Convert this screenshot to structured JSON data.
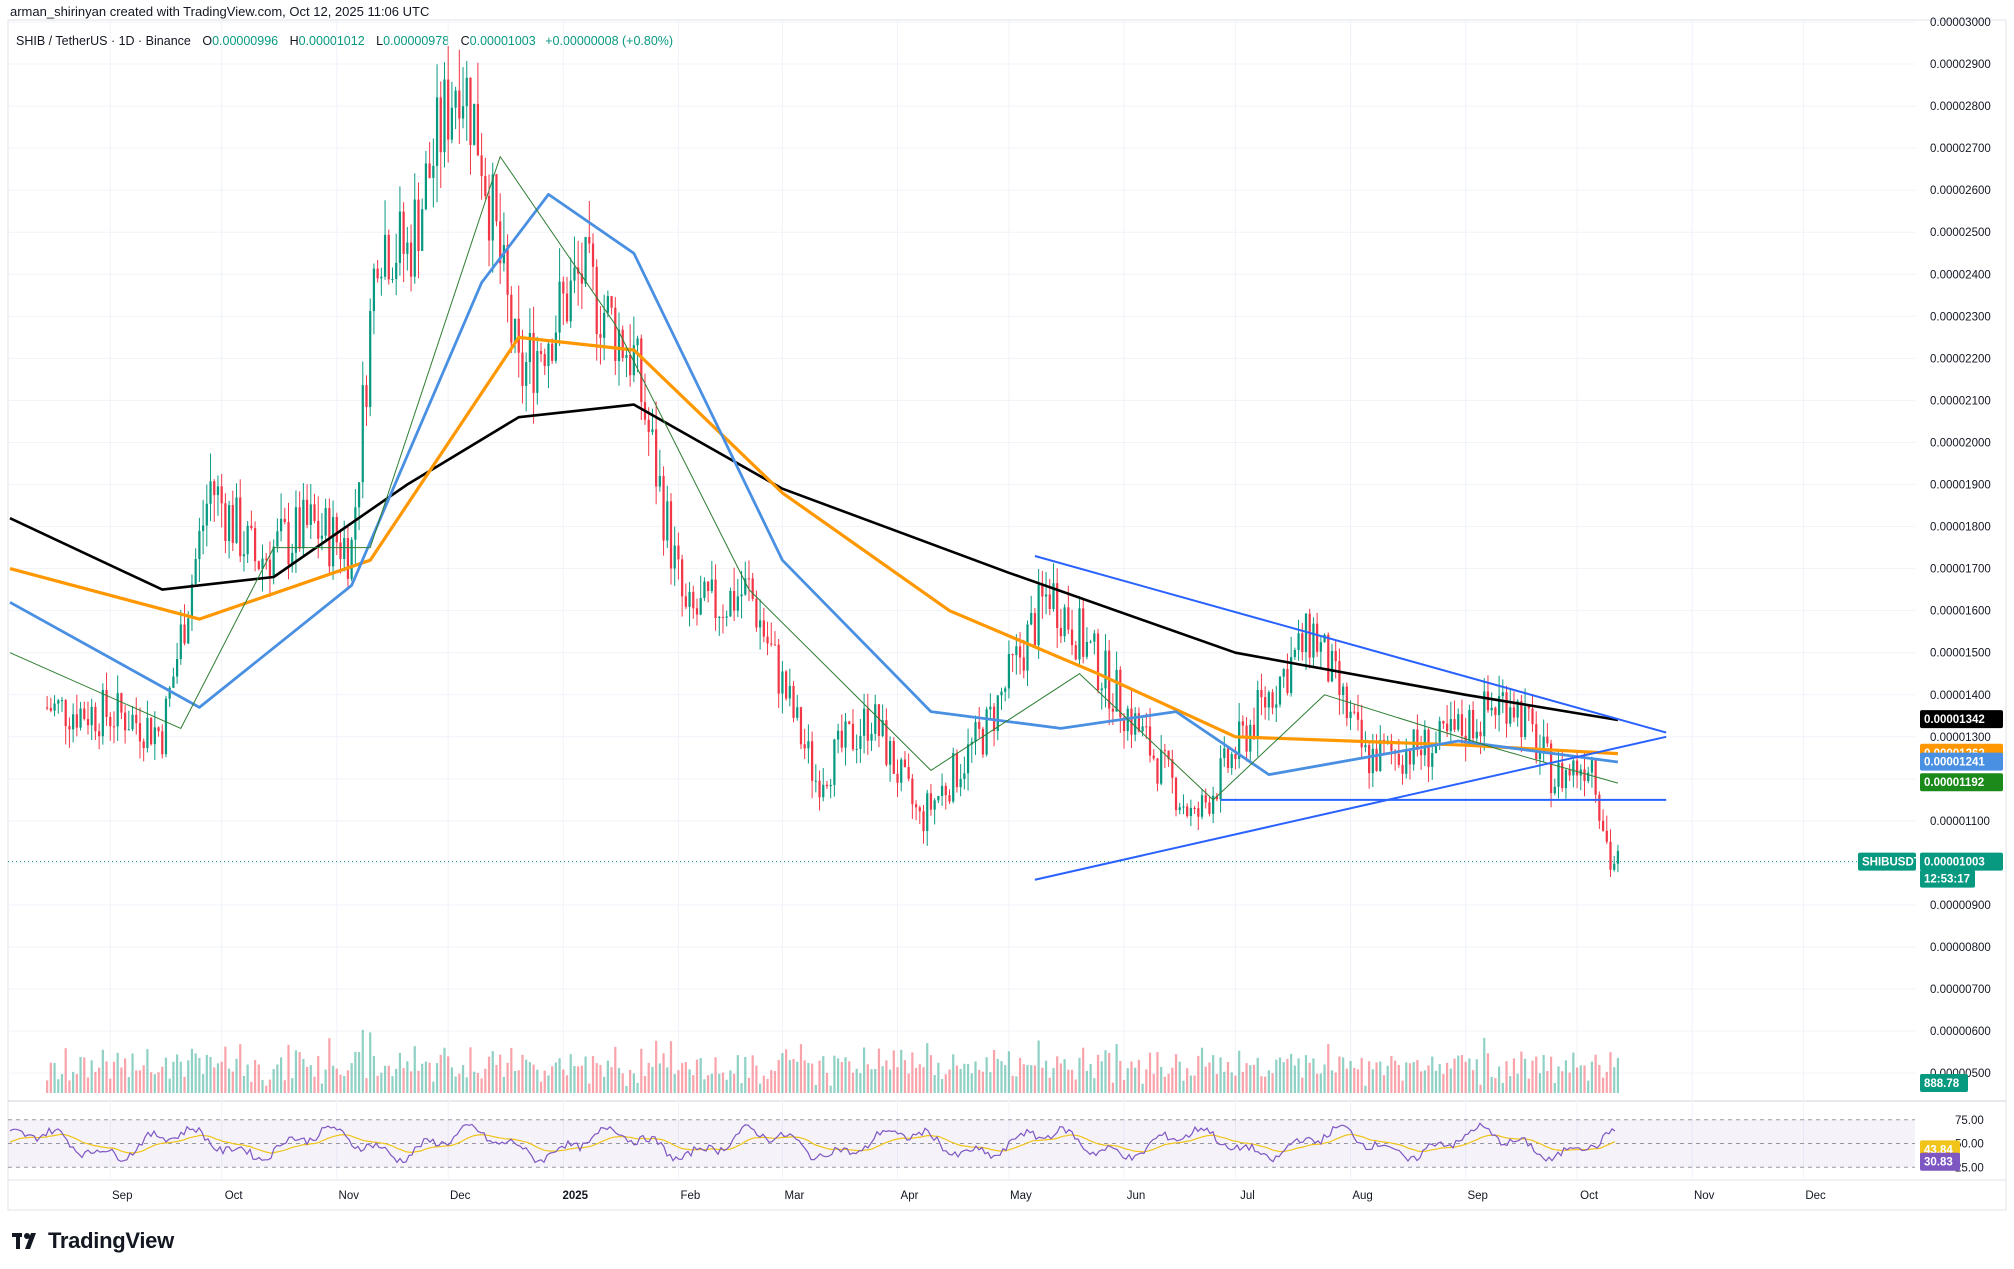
{
  "header": {
    "byline": "arman_shirinyan created with TradingView.com, Oct 12, 2025 11:06 UTC"
  },
  "legend": {
    "symbol": "SHIB / TetherUS · 1D · Binance",
    "open_label": "O",
    "open": "0.00000996",
    "high_label": "H",
    "high": "0.00001012",
    "low_label": "L",
    "low": "0.00000978",
    "close_label": "C",
    "close": "0.00001003",
    "change": "+0.00000008 (+0.80%)"
  },
  "colors": {
    "up": "#089981",
    "down": "#f23645",
    "ma200": "#000000",
    "ma100": "#ff9800",
    "ma50": "#4a90e2",
    "ma20": "#2e7d32",
    "trendline": "#2962ff",
    "rsi": "#7e57c2",
    "rsi_ma": "#f0c419"
  },
  "price_axis": {
    "ticks": [
      "0.00003000",
      "0.00002900",
      "0.00002800",
      "0.00002700",
      "0.00002600",
      "0.00002500",
      "0.00002400",
      "0.00002300",
      "0.00002200",
      "0.00002100",
      "0.00002000",
      "0.00001900",
      "0.00001800",
      "0.00001700",
      "0.00001600",
      "0.00001500",
      "0.00001400",
      "0.00001300",
      "0.00001200",
      "0.00001100",
      "0.00001000",
      "0.00000900",
      "0.00000800",
      "0.00000700",
      "0.00000600",
      "0.00000500"
    ]
  },
  "tags": {
    "ma200": "0.00001342",
    "ma100": "0.00001262",
    "ma50": "0.00001241",
    "ma20": "0.00001192",
    "symbol_label": "SHIBUSDT",
    "last_price": "0.00001003",
    "countdown": "12:53:17",
    "volume": "888.78"
  },
  "rsi_axis": {
    "top": "75.00",
    "mid": "50.00",
    "low": "25.00",
    "rsi_ma_value": "43.84",
    "rsi_value": "30.83"
  },
  "time_axis": {
    "labels": [
      "Sep",
      "Oct",
      "Nov",
      "Dec",
      "2025",
      "Feb",
      "Mar",
      "Apr",
      "May",
      "Jun",
      "Jul",
      "Aug",
      "Sep",
      "Oct",
      "Nov",
      "Dec"
    ]
  },
  "branding": {
    "name": "TradingView"
  },
  "chart_data": {
    "type": "candlestick",
    "symbol": "SHIB / TetherUS",
    "interval": "1D",
    "exchange": "Binance",
    "ylim": [
      4.6e-06,
      3e-05
    ],
    "x_range": [
      "2024-08-05",
      "2025-12-31"
    ],
    "series": [
      {
        "name": "close",
        "points": [
          [
            "2024-08-15",
            1.37e-05
          ],
          [
            "2024-09-05",
            1.35e-05
          ],
          [
            "2024-09-15",
            1.31e-05
          ],
          [
            "2024-09-28",
            1.9e-05
          ],
          [
            "2024-10-10",
            1.72e-05
          ],
          [
            "2024-10-25",
            1.8e-05
          ],
          [
            "2024-11-05",
            1.75e-05
          ],
          [
            "2024-11-12",
            2.5e-05
          ],
          [
            "2024-11-20",
            2.45e-05
          ],
          [
            "2024-12-04",
            2.9e-05
          ],
          [
            "2024-12-10",
            2.7e-05
          ],
          [
            "2024-12-20",
            2.15e-05
          ],
          [
            "2025-01-06",
            2.4e-05
          ],
          [
            "2025-01-20",
            2.2e-05
          ],
          [
            "2025-02-03",
            1.58e-05
          ],
          [
            "2025-02-20",
            1.65e-05
          ],
          [
            "2025-03-10",
            1.2e-05
          ],
          [
            "2025-03-25",
            1.35e-05
          ],
          [
            "2025-04-07",
            1.1e-05
          ],
          [
            "2025-04-25",
            1.32e-05
          ],
          [
            "2025-05-12",
            1.65e-05
          ],
          [
            "2025-05-30",
            1.4e-05
          ],
          [
            "2025-06-20",
            1.1e-05
          ],
          [
            "2025-07-10",
            1.4e-05
          ],
          [
            "2025-07-22",
            1.55e-05
          ],
          [
            "2025-08-05",
            1.25e-05
          ],
          [
            "2025-08-25",
            1.28e-05
          ],
          [
            "2025-09-13",
            1.4e-05
          ],
          [
            "2025-09-25",
            1.2e-05
          ],
          [
            "2025-10-05",
            1.25e-05
          ],
          [
            "2025-10-10",
            1e-05
          ],
          [
            "2025-10-12",
            1e-05
          ]
        ]
      },
      {
        "name": "MA 200",
        "points": [
          [
            "2024-08-05",
            1.82e-05
          ],
          [
            "2024-09-15",
            1.65e-05
          ],
          [
            "2024-10-15",
            1.68e-05
          ],
          [
            "2024-11-20",
            1.9e-05
          ],
          [
            "2024-12-20",
            2.06e-05
          ],
          [
            "2025-01-20",
            2.09e-05
          ],
          [
            "2025-03-01",
            1.89e-05
          ],
          [
            "2025-05-01",
            1.69e-05
          ],
          [
            "2025-07-01",
            1.5e-05
          ],
          [
            "2025-09-01",
            1.4e-05
          ],
          [
            "2025-10-12",
            1.34e-05
          ]
        ]
      },
      {
        "name": "MA 100",
        "points": [
          [
            "2024-08-05",
            1.7e-05
          ],
          [
            "2024-09-25",
            1.58e-05
          ],
          [
            "2024-11-10",
            1.72e-05
          ],
          [
            "2024-12-20",
            2.25e-05
          ],
          [
            "2025-01-20",
            2.22e-05
          ],
          [
            "2025-03-01",
            1.88e-05
          ],
          [
            "2025-04-15",
            1.6e-05
          ],
          [
            "2025-05-25",
            1.45e-05
          ],
          [
            "2025-07-01",
            1.3e-05
          ],
          [
            "2025-09-01",
            1.28e-05
          ],
          [
            "2025-10-12",
            1.26e-05
          ]
        ]
      },
      {
        "name": "MA 50",
        "points": [
          [
            "2024-08-05",
            1.62e-05
          ],
          [
            "2024-09-25",
            1.37e-05
          ],
          [
            "2024-11-05",
            1.66e-05
          ],
          [
            "2024-12-10",
            2.38e-05
          ],
          [
            "2024-12-28",
            2.59e-05
          ],
          [
            "2025-01-20",
            2.45e-05
          ],
          [
            "2025-03-01",
            1.72e-05
          ],
          [
            "2025-04-10",
            1.36e-05
          ],
          [
            "2025-05-15",
            1.32e-05
          ],
          [
            "2025-06-15",
            1.36e-05
          ],
          [
            "2025-07-10",
            1.21e-05
          ],
          [
            "2025-08-30",
            1.29e-05
          ],
          [
            "2025-10-12",
            1.24e-05
          ]
        ]
      },
      {
        "name": "MA 20",
        "points": [
          [
            "2024-08-05",
            1.5e-05
          ],
          [
            "2024-09-20",
            1.32e-05
          ],
          [
            "2024-10-15",
            1.75e-05
          ],
          [
            "2024-11-10",
            1.75e-05
          ],
          [
            "2024-12-15",
            2.68e-05
          ],
          [
            "2025-01-15",
            2.28e-05
          ],
          [
            "2025-02-20",
            1.65e-05
          ],
          [
            "2025-04-10",
            1.22e-05
          ],
          [
            "2025-05-20",
            1.45e-05
          ],
          [
            "2025-06-25",
            1.15e-05
          ],
          [
            "2025-07-25",
            1.4e-05
          ],
          [
            "2025-09-10",
            1.27e-05
          ],
          [
            "2025-10-12",
            1.19e-05
          ]
        ]
      }
    ],
    "trendlines": [
      {
        "name": "descending resistance",
        "from": [
          "2025-05-08",
          1.73e-05
        ],
        "to": [
          "2025-10-25",
          1.31e-05
        ]
      },
      {
        "name": "ascending support",
        "from": [
          "2025-05-08",
          9.6e-06
        ],
        "to": [
          "2025-10-25",
          1.3e-05
        ]
      },
      {
        "name": "horizontal support",
        "from": [
          "2025-06-27",
          1.15e-05
        ],
        "to": [
          "2025-10-25",
          1.15e-05
        ]
      }
    ],
    "volume": {
      "last": 888.78
    },
    "rsi": {
      "levels": [
        25,
        50,
        75
      ],
      "rsi": 30.83,
      "rsi_ma": 43.84
    },
    "grid": true
  }
}
